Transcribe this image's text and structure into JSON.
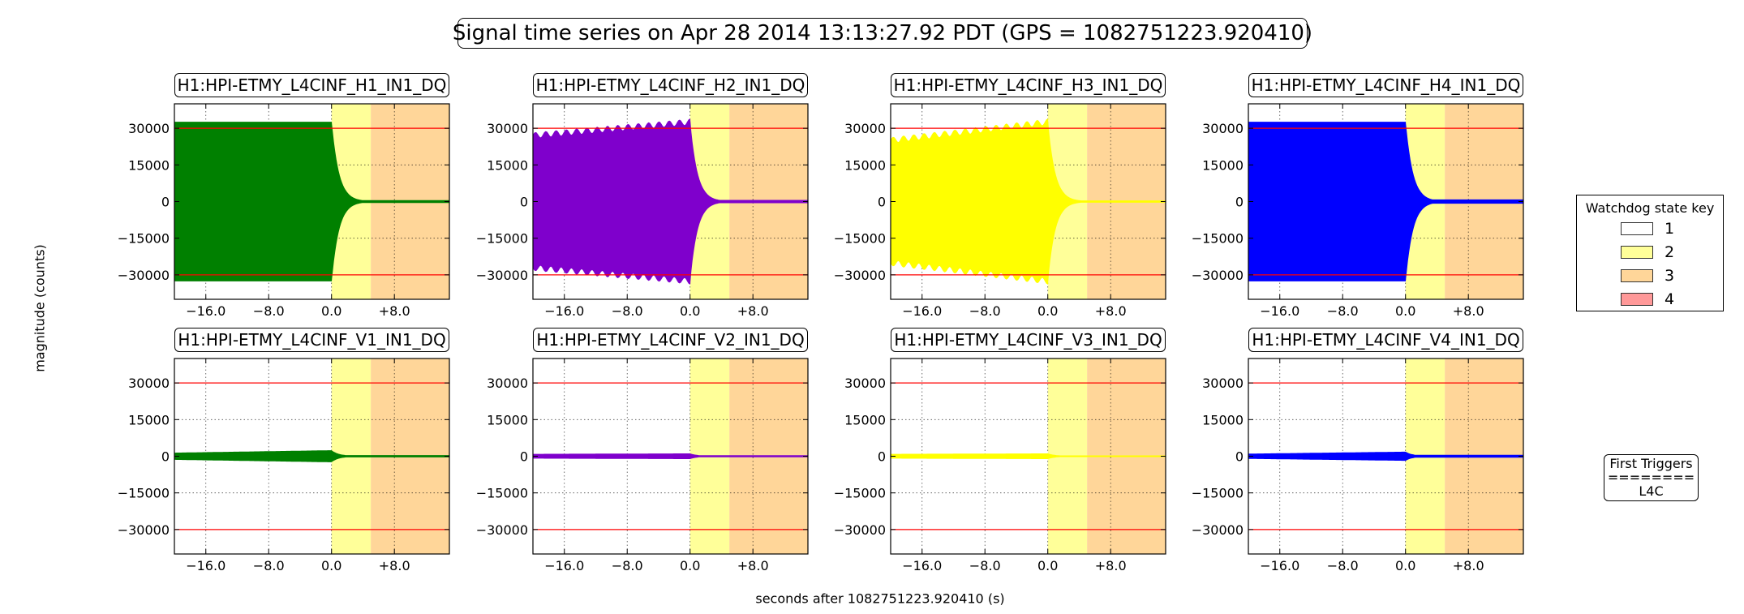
{
  "title": "Signal time series on Apr 28 2014 13:13:27.92 PDT (GPS = 1082751223.920410)",
  "ylabel": "magnitude (counts)",
  "xlabel": "seconds after 1082751223.920410 (s)",
  "legend": {
    "title": "Watchdog state key",
    "entries": [
      {
        "label": "1",
        "color": "#ffffff"
      },
      {
        "label": "2",
        "color": "#ffff99"
      },
      {
        "label": "3",
        "color": "#ffd699"
      },
      {
        "label": "4",
        "color": "#ff9999"
      }
    ]
  },
  "triggers": {
    "title": "First Triggers",
    "separator": "========",
    "items": [
      "L4C"
    ]
  },
  "chart_data": {
    "type": "area",
    "x_ticks": [
      -16,
      -8,
      0,
      8
    ],
    "x_tick_labels": [
      "−16.0",
      "−8.0",
      "0.0",
      "+8.0"
    ],
    "xlim": [
      -20,
      15
    ],
    "y_ticks": [
      30000,
      15000,
      0,
      -15000,
      -30000
    ],
    "y_tick_labels": [
      "30000",
      "15000",
      "0",
      "−15000",
      "−30000"
    ],
    "ylim": [
      -40000,
      40000
    ],
    "threshold_lines": [
      30000,
      -30000
    ],
    "threshold_color": "#ff0000",
    "state_bands": [
      {
        "state": 2,
        "from": 0,
        "to": 5,
        "color": "#ffff99"
      },
      {
        "state": 3,
        "from": 5,
        "to": 15,
        "color": "#ffd699"
      }
    ],
    "grid": true,
    "panels": [
      {
        "name": "H1:HPI-ETMY_L4CINF_H1_IN1_DQ",
        "color": "#008000",
        "pre_start": 32500,
        "pre_end": 32500,
        "tail": 400
      },
      {
        "name": "H1:HPI-ETMY_L4CINF_H2_IN1_DQ",
        "color": "#7f00cc",
        "pre_start": 27000,
        "pre_end": 32500,
        "tail": 500
      },
      {
        "name": "H1:HPI-ETMY_L4CINF_H3_IN1_DQ",
        "color": "#ffff00",
        "pre_start": 25000,
        "pre_end": 32500,
        "tail": 300
      },
      {
        "name": "H1:HPI-ETMY_L4CINF_H4_IN1_DQ",
        "color": "#0000ff",
        "pre_start": 32500,
        "pre_end": 32500,
        "tail": 700
      },
      {
        "name": "H1:HPI-ETMY_L4CINF_V1_IN1_DQ",
        "color": "#008000",
        "pre_start": 1300,
        "pre_end": 2300,
        "tail": 300
      },
      {
        "name": "H1:HPI-ETMY_L4CINF_V2_IN1_DQ",
        "color": "#7f00cc",
        "pre_start": 800,
        "pre_end": 1000,
        "tail": 250
      },
      {
        "name": "H1:HPI-ETMY_L4CINF_V3_IN1_DQ",
        "color": "#ffff00",
        "pre_start": 800,
        "pre_end": 1000,
        "tail": 150
      },
      {
        "name": "H1:HPI-ETMY_L4CINF_V4_IN1_DQ",
        "color": "#0000ff",
        "pre_start": 900,
        "pre_end": 1700,
        "tail": 400
      }
    ]
  }
}
